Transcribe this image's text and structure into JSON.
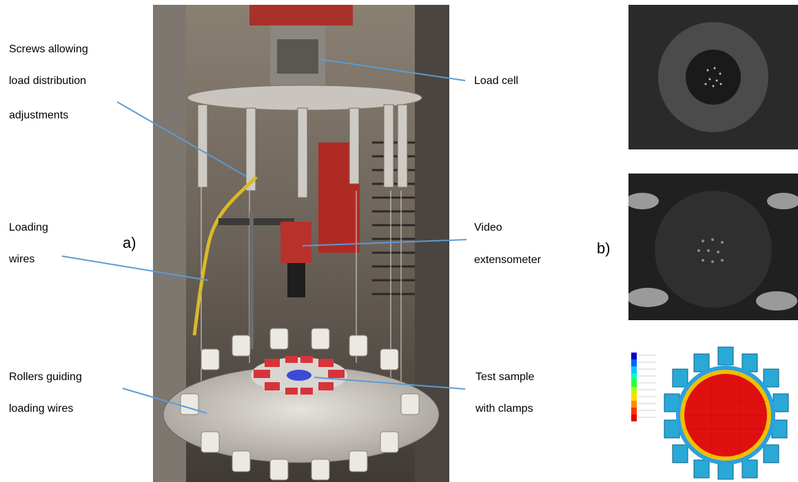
{
  "labels": {
    "screws_line1": "Screws allowing",
    "screws_line2": "load distribution",
    "screws_line3": "adjustments",
    "load_cell": "Load cell",
    "loading_wires_line1": "Loading",
    "loading_wires_line2": "wires",
    "video_line1": "Video",
    "video_line2": "extensometer",
    "rollers_line1": "Rollers guiding",
    "rollers_line2": "loading wires",
    "test_line1": "Test sample",
    "test_line2": "with clamps"
  },
  "panel_labels": {
    "a": "a)",
    "b": "b)"
  },
  "colors": {
    "leader_line": "#5b9bd5",
    "fem_center": "#e01010",
    "fem_clamp": "#29a9d6"
  }
}
